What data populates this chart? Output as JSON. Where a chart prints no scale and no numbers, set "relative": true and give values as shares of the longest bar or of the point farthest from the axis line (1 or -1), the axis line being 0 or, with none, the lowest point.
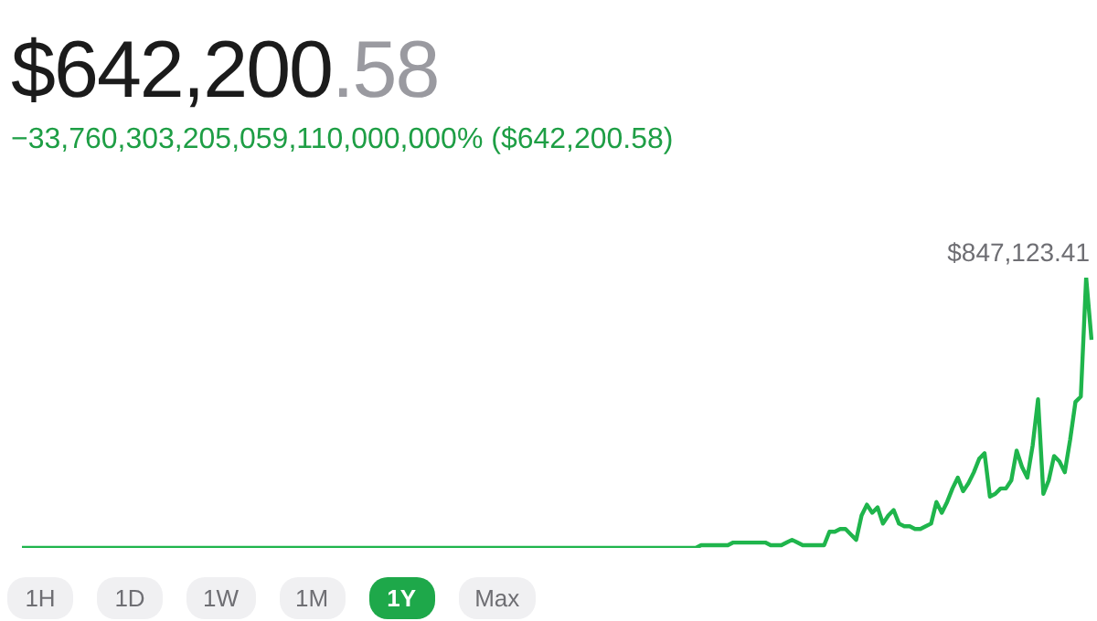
{
  "chart_data": {
    "type": "line",
    "title": "$642,200.58",
    "subtitle": "−33,760,303,205,059,110,000,000% ($642,200.58)",
    "relative": true,
    "legend": false,
    "marker": "none",
    "annotations": [
      "$847,123.41",
      "1H",
      "1D",
      "1W",
      "1M",
      "1Y",
      "Max"
    ],
    "categories": [
      null,
      null,
      null,
      null,
      null,
      null,
      null,
      null,
      null,
      null,
      null,
      null,
      null,
      null,
      null,
      null,
      null,
      null,
      null,
      null,
      null,
      null,
      null,
      null,
      null,
      null,
      null,
      null,
      null,
      null,
      null,
      null,
      null,
      null,
      null,
      null,
      null,
      null,
      null,
      null,
      null,
      null,
      null,
      null,
      null,
      null,
      null,
      null,
      null,
      null,
      null,
      null,
      null,
      null,
      null,
      null,
      null,
      null,
      null,
      null,
      null,
      null,
      null,
      null,
      null,
      null,
      null,
      null,
      null,
      null,
      null,
      null,
      null,
      null,
      null,
      null,
      null,
      null,
      null,
      null,
      null,
      null,
      null,
      null,
      null,
      null,
      null,
      null,
      null,
      null,
      null,
      null,
      null,
      null,
      null,
      null,
      null,
      null,
      null,
      null,
      null,
      null,
      null,
      null,
      null,
      null,
      null,
      null,
      null,
      null,
      null,
      null,
      null,
      null,
      null,
      null,
      null,
      null,
      null,
      null,
      null,
      null,
      null,
      null,
      null,
      null,
      null,
      null,
      null,
      null,
      null,
      null,
      null,
      null,
      null,
      null,
      null,
      null,
      null,
      null,
      null,
      null,
      null,
      null,
      null,
      null,
      null,
      null,
      null,
      null,
      null,
      null,
      null,
      null,
      null,
      null,
      null,
      null,
      null,
      null,
      null,
      null,
      null,
      null,
      null,
      null,
      null,
      null,
      null,
      null,
      null,
      null,
      null,
      null,
      null,
      null,
      null,
      null,
      null,
      null,
      null,
      null,
      null,
      null,
      null,
      null,
      null,
      null,
      null,
      null,
      null,
      null,
      null,
      null,
      null,
      null,
      null,
      null,
      null,
      null,
      null
    ],
    "series": [
      {
        "color": "#1fb54c",
        "values": [
          0,
          0,
          0,
          0,
          0,
          0,
          0,
          0,
          0,
          0,
          0,
          0,
          0,
          0,
          0,
          0,
          0,
          0,
          0,
          0,
          0,
          0,
          0,
          0,
          0,
          0,
          0,
          0,
          0,
          0,
          0,
          0,
          0,
          0,
          0,
          0,
          0,
          0,
          0,
          0,
          0,
          0,
          0,
          0,
          0,
          0,
          0,
          0,
          0,
          0,
          0,
          0,
          0,
          0,
          0,
          0,
          0,
          0,
          0,
          0,
          0,
          0,
          0,
          0,
          0,
          0,
          0,
          0,
          0,
          0,
          0,
          0,
          0,
          0,
          0,
          0,
          0,
          0,
          0,
          0,
          0,
          0,
          0,
          0,
          0,
          0,
          0,
          0,
          0,
          0,
          0,
          0,
          0,
          0,
          0,
          0,
          0,
          0,
          0,
          0,
          0,
          0,
          0,
          0,
          0,
          0,
          0,
          0,
          0,
          0,
          0,
          0,
          0,
          0,
          0,
          0,
          0,
          0,
          0,
          0,
          0,
          0,
          0,
          0,
          0,
          0,
          0,
          0.01,
          0.01,
          0.01,
          0.01,
          0.01,
          0.01,
          0.02,
          0.02,
          0.02,
          0.02,
          0.02,
          0.02,
          0.02,
          0.01,
          0.01,
          0.01,
          0.02,
          0.03,
          0.02,
          0.01,
          0.01,
          0.01,
          0.01,
          0.01,
          0.06,
          0.06,
          0.07,
          0.07,
          0.05,
          0.03,
          0.12,
          0.16,
          0.13,
          0.15,
          0.09,
          0.12,
          0.14,
          0.09,
          0.08,
          0.08,
          0.07,
          0.07,
          0.08,
          0.09,
          0.17,
          0.13,
          0.17,
          0.22,
          0.26,
          0.21,
          0.24,
          0.28,
          0.33,
          0.35,
          0.19,
          0.2,
          0.22,
          0.22,
          0.25,
          0.36,
          0.3,
          0.26,
          0.38,
          0.55,
          0.2,
          0.25,
          0.34,
          0.32,
          0.28,
          0.4,
          0.54,
          0.56,
          1,
          0.77
        ]
      }
    ]
  }
}
